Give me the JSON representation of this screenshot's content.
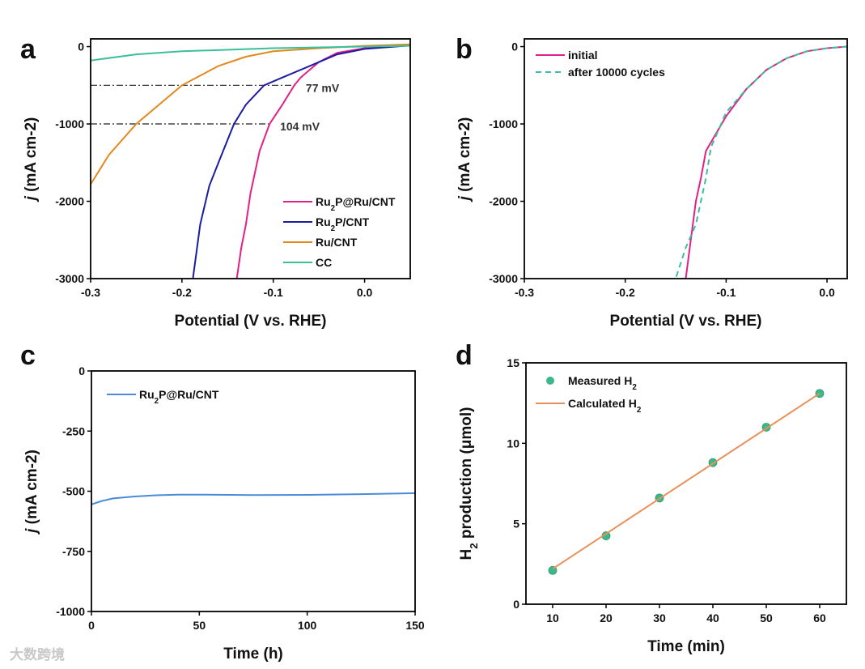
{
  "chart_data": [
    {
      "panel": "a",
      "type": "line",
      "title": "",
      "xlabel": "Potential (V vs. RHE)",
      "ylabel": "j (mA cm-2)",
      "xlim": [
        -0.3,
        0.05
      ],
      "ylim": [
        -3000,
        100
      ],
      "xticks": [
        -0.3,
        -0.2,
        -0.1,
        0.0
      ],
      "xtick_labels": [
        "-0.3",
        "-0.2",
        "-0.1",
        "0.0"
      ],
      "yticks": [
        0,
        -1000,
        -2000,
        -3000
      ],
      "ytick_labels": [
        "0",
        "-1000",
        "-2000",
        "-3000"
      ],
      "legend_position": "bottom-right",
      "series": [
        {
          "name": "Ru2P@Ru/CNT",
          "color": "#e0218a",
          "x": [
            0.05,
            0.0,
            -0.03,
            -0.05,
            -0.07,
            -0.077,
            -0.09,
            -0.104,
            -0.115,
            -0.125,
            -0.13,
            -0.135,
            -0.14
          ],
          "y": [
            20,
            -20,
            -80,
            -200,
            -400,
            -500,
            -750,
            -1000,
            -1350,
            -1900,
            -2300,
            -2600,
            -3000
          ]
        },
        {
          "name": "Ru2P/CNT",
          "color": "#1c1ca0",
          "x": [
            0.05,
            0.0,
            -0.03,
            -0.06,
            -0.09,
            -0.11,
            -0.13,
            -0.143,
            -0.16,
            -0.17,
            -0.18,
            -0.188
          ],
          "y": [
            15,
            -30,
            -100,
            -250,
            -400,
            -500,
            -750,
            -1000,
            -1500,
            -1800,
            -2300,
            -3000
          ]
        },
        {
          "name": "Ru/CNT",
          "color": "#e08a1e",
          "x": [
            0.05,
            0.0,
            -0.05,
            -0.1,
            -0.13,
            -0.16,
            -0.2,
            -0.25,
            -0.28,
            -0.3
          ],
          "y": [
            30,
            10,
            -20,
            -60,
            -130,
            -250,
            -500,
            -1000,
            -1400,
            -1780
          ]
        },
        {
          "name": "CC",
          "color": "#3cbf9a",
          "x": [
            0.05,
            0.0,
            -0.1,
            -0.2,
            -0.25,
            -0.3
          ],
          "y": [
            10,
            0,
            -20,
            -60,
            -100,
            -180
          ]
        }
      ],
      "annotations": [
        {
          "text": "77 mV",
          "y": -500,
          "x_from": -0.3,
          "x_to": -0.075
        },
        {
          "text": "104 mV",
          "y": -1000,
          "x_from": -0.3,
          "x_to": -0.105
        }
      ]
    },
    {
      "panel": "b",
      "type": "line",
      "xlabel": "Potential (V vs. RHE)",
      "ylabel": "j (mA cm-2)",
      "xlim": [
        -0.3,
        0.02
      ],
      "ylim": [
        -3000,
        100
      ],
      "xticks": [
        -0.3,
        -0.2,
        -0.1,
        0.0
      ],
      "xtick_labels": [
        "-0.3",
        "-0.2",
        "-0.1",
        "0.0"
      ],
      "yticks": [
        0,
        -1000,
        -2000,
        -3000
      ],
      "ytick_labels": [
        "0",
        "-1000",
        "-2000",
        "-3000"
      ],
      "legend_position": "top-left",
      "series": [
        {
          "name": "initial",
          "color": "#e0218a",
          "dash": false,
          "x": [
            0.02,
            0.0,
            -0.02,
            -0.04,
            -0.06,
            -0.08,
            -0.1,
            -0.12,
            -0.125,
            -0.13,
            -0.135,
            -0.14
          ],
          "y": [
            0,
            -20,
            -60,
            -150,
            -300,
            -550,
            -900,
            -1350,
            -1700,
            -2000,
            -2500,
            -3000
          ]
        },
        {
          "name": "after 10000 cycles",
          "color": "#3cbf9a",
          "dash": true,
          "x": [
            0.02,
            0.0,
            -0.02,
            -0.04,
            -0.06,
            -0.08,
            -0.1,
            -0.115,
            -0.12,
            -0.13,
            -0.14,
            -0.15
          ],
          "y": [
            0,
            -20,
            -60,
            -150,
            -300,
            -550,
            -850,
            -1300,
            -1700,
            -2300,
            -2600,
            -3000
          ]
        }
      ]
    },
    {
      "panel": "c",
      "type": "line",
      "xlabel": "Time (h)",
      "ylabel": "j (mA cm-2)",
      "xlim": [
        0,
        150
      ],
      "ylim": [
        -1000,
        0
      ],
      "xticks": [
        0,
        50,
        100,
        150
      ],
      "xtick_labels": [
        "0",
        "50",
        "100",
        "150"
      ],
      "yticks": [
        0,
        -250,
        -500,
        -750,
        -1000
      ],
      "ytick_labels": [
        "0",
        "-250",
        "-500",
        "-750",
        "-1000"
      ],
      "legend_position": "top-left",
      "series": [
        {
          "name": "Ru2P@Ru/CNT",
          "color": "#4a8ad8",
          "x": [
            0,
            5,
            10,
            20,
            30,
            40,
            50,
            75,
            100,
            125,
            150
          ],
          "y": [
            -555,
            -540,
            -530,
            -522,
            -517,
            -514,
            -514,
            -516,
            -515,
            -512,
            -508
          ]
        }
      ]
    },
    {
      "panel": "d",
      "type": "scatter",
      "xlabel": "Time (min)",
      "ylabel": "H2 production (μmol)",
      "xlim": [
        5,
        65
      ],
      "ylim": [
        0,
        15
      ],
      "xticks": [
        10,
        20,
        30,
        40,
        50,
        60
      ],
      "xtick_labels": [
        "10",
        "20",
        "30",
        "40",
        "50",
        "60"
      ],
      "yticks": [
        0,
        5,
        10,
        15
      ],
      "ytick_labels": [
        "0",
        "5",
        "10",
        "15"
      ],
      "legend_position": "top-left",
      "series": [
        {
          "name": "Measured H2",
          "kind": "scatter",
          "color": "#3cb88a",
          "x": [
            10,
            20,
            30,
            40,
            50,
            60
          ],
          "y": [
            2.1,
            4.25,
            6.6,
            8.8,
            11.0,
            13.1
          ]
        },
        {
          "name": "Calculated H2",
          "kind": "line",
          "color": "#e8905a",
          "x": [
            10,
            60
          ],
          "y": [
            2.2,
            13.1
          ]
        }
      ]
    }
  ],
  "labels": {
    "a": "a",
    "b": "b",
    "c": "c",
    "d": "d"
  },
  "watermark": "大数跨境"
}
